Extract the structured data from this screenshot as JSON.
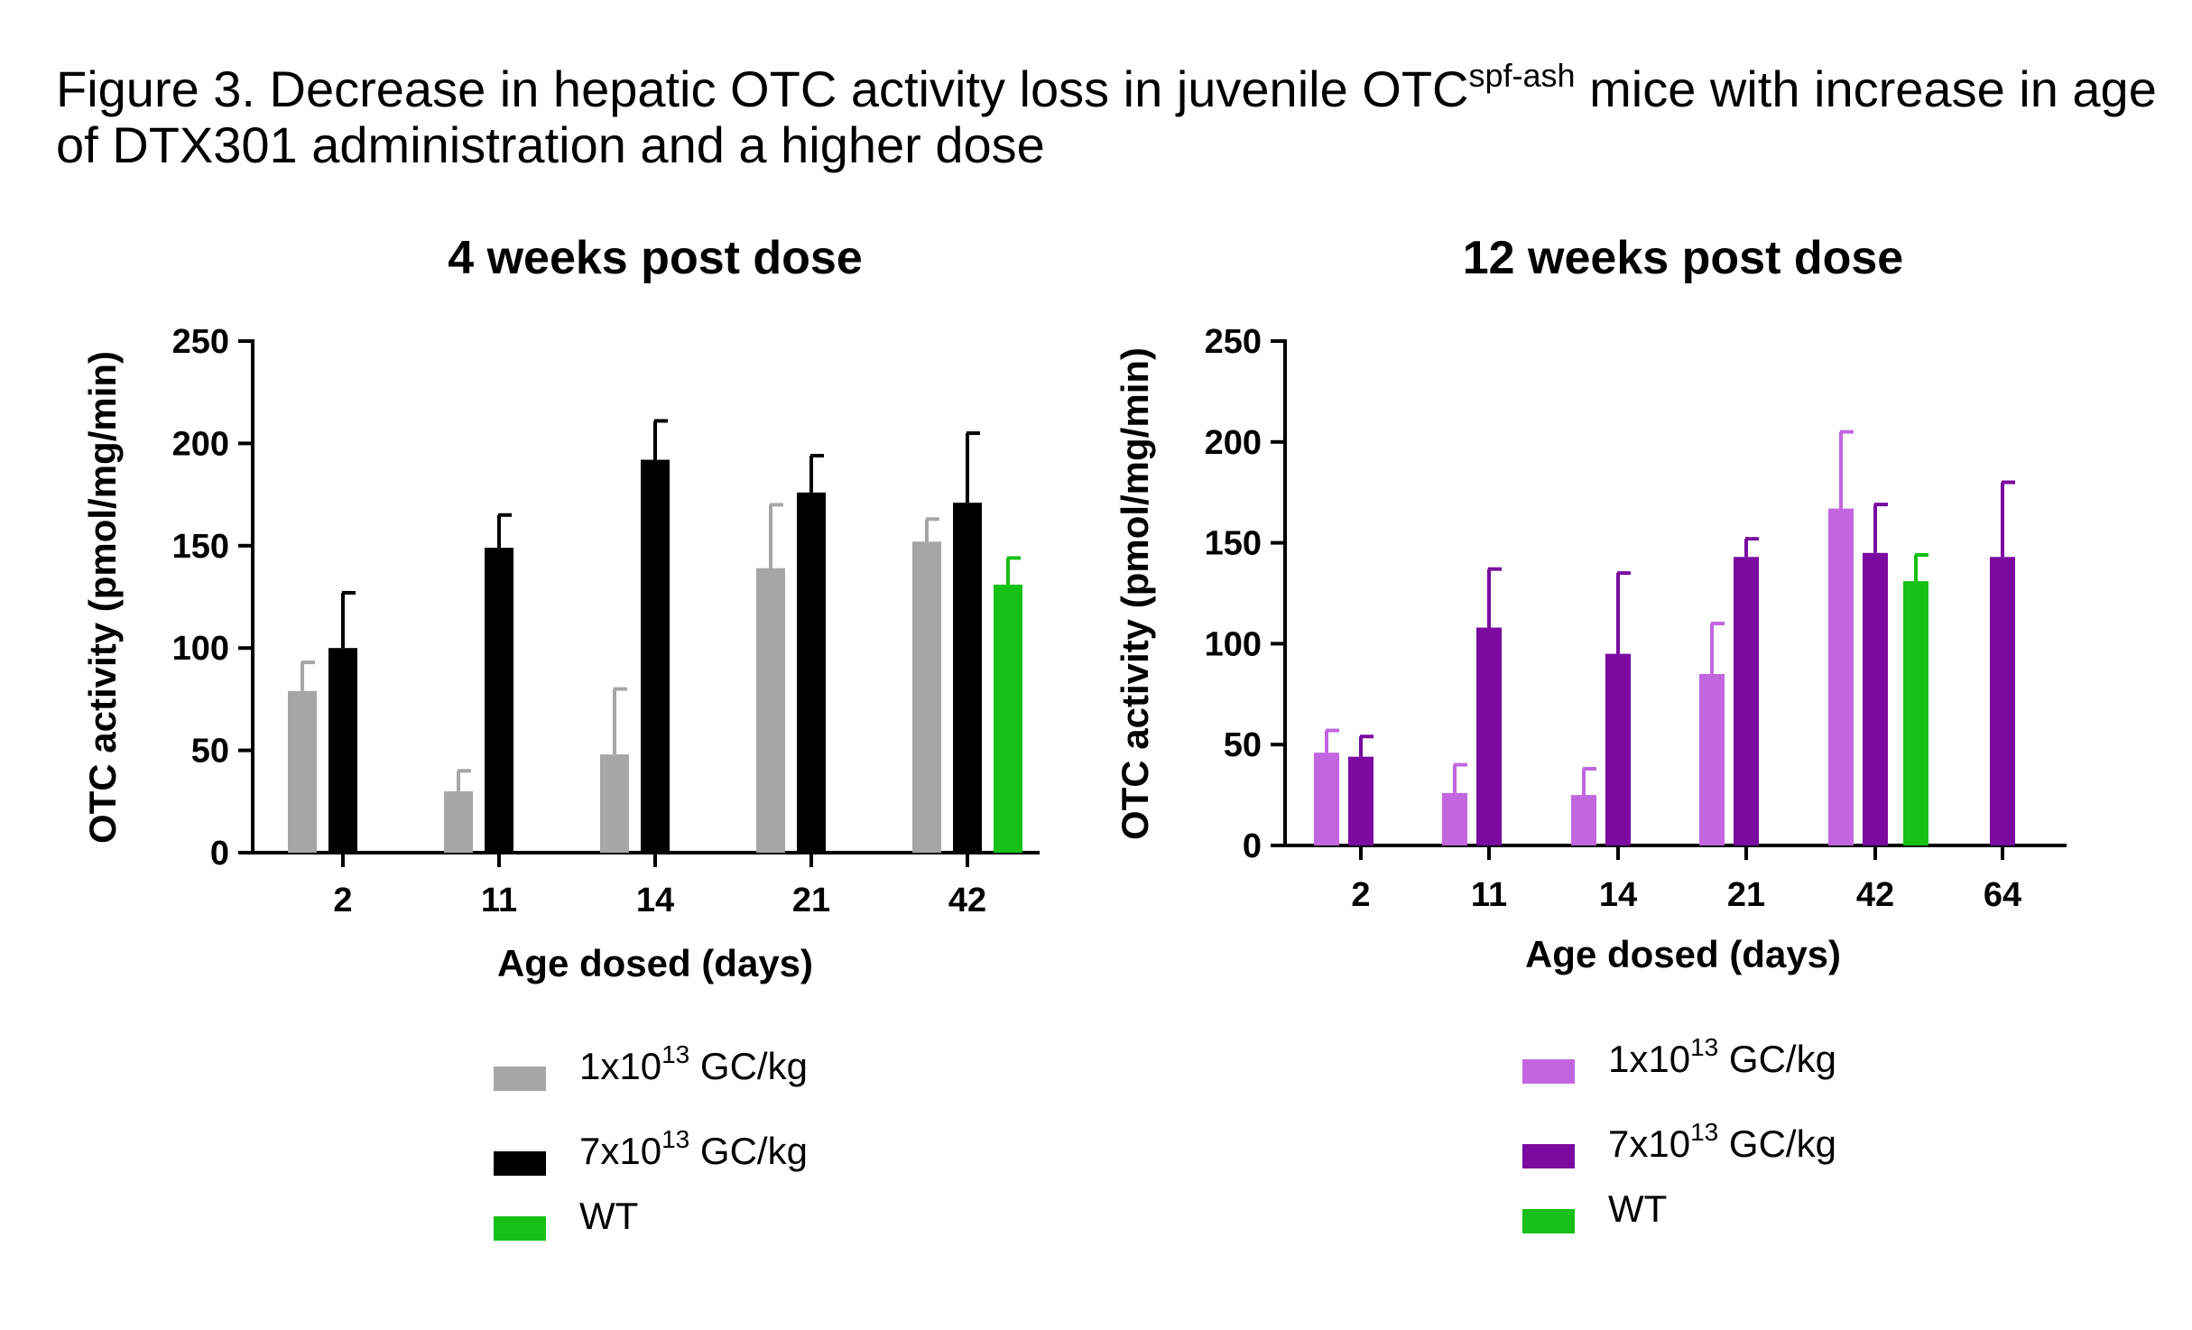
{
  "figure": {
    "title_pre": "Figure 3. Decrease in hepatic OTC activity loss in juvenile OTC",
    "title_sup": "spf-ash",
    "title_post": " mice with increase in age of DTX301 administration and a higher dose"
  },
  "chart_data": [
    {
      "type": "bar",
      "title": "4 weeks post dose",
      "xlabel": "Age dosed (days)",
      "ylabel": "OTC activity (pmol/mg/min)",
      "ylim": [
        0,
        250
      ],
      "yticks": [
        "0",
        "50",
        "100",
        "150",
        "200",
        "250"
      ],
      "categories": [
        "2",
        "11",
        "14",
        "21",
        "42"
      ],
      "series": [
        {
          "name": "1x10^13 GC/kg",
          "color": "#a6a6a6",
          "values": [
            79,
            30,
            48,
            139,
            152
          ],
          "errors": [
            14,
            10,
            32,
            31,
            11
          ]
        },
        {
          "name": "7x10^13 GC/kg",
          "color": "#000000",
          "values": [
            100,
            149,
            192,
            176,
            171
          ],
          "errors": [
            27,
            16,
            19,
            18,
            34
          ]
        },
        {
          "name": "WT",
          "color": "#16c016",
          "values": [
            null,
            null,
            null,
            null,
            131
          ],
          "errors": [
            null,
            null,
            null,
            null,
            13
          ]
        }
      ],
      "legend": [
        {
          "pre": "1x10",
          "sup": "13",
          "post": " GC/kg",
          "color": "#a6a6a6"
        },
        {
          "pre": "7x10",
          "sup": "13",
          "post": " GC/kg",
          "color": "#000000"
        },
        {
          "pre": "WT",
          "sup": "",
          "post": "",
          "color": "#16c016"
        }
      ],
      "legend_placement": "bottom"
    },
    {
      "type": "bar",
      "title": "12 weeks post dose",
      "xlabel": "Age dosed (days)",
      "ylabel": "OTC activity (pmol/mg/min)",
      "ylim": [
        0,
        250
      ],
      "yticks": [
        "0",
        "50",
        "100",
        "150",
        "200",
        "250"
      ],
      "categories": [
        "2",
        "11",
        "14",
        "21",
        "42",
        "64"
      ],
      "series": [
        {
          "name": "1x10^13 GC/kg",
          "color": "#c266e0",
          "values": [
            46,
            26,
            25,
            85,
            167,
            null
          ],
          "errors": [
            11,
            14,
            13,
            25,
            38,
            null
          ]
        },
        {
          "name": "7x10^13 GC/kg",
          "color": "#7a0aa0",
          "values": [
            44,
            108,
            95,
            143,
            145,
            143
          ],
          "errors": [
            10,
            29,
            40,
            9,
            24,
            37
          ]
        },
        {
          "name": "WT",
          "color": "#16c016",
          "values": [
            null,
            null,
            null,
            null,
            131,
            null
          ],
          "errors": [
            null,
            null,
            null,
            null,
            13,
            null
          ]
        }
      ],
      "legend": [
        {
          "pre": "1x10",
          "sup": "13",
          "post": " GC/kg",
          "color": "#c266e0"
        },
        {
          "pre": "7x10",
          "sup": "13",
          "post": " GC/kg",
          "color": "#7a0aa0"
        },
        {
          "pre": "WT",
          "sup": "",
          "post": "",
          "color": "#16c016"
        }
      ],
      "legend_placement": "bottom"
    }
  ]
}
